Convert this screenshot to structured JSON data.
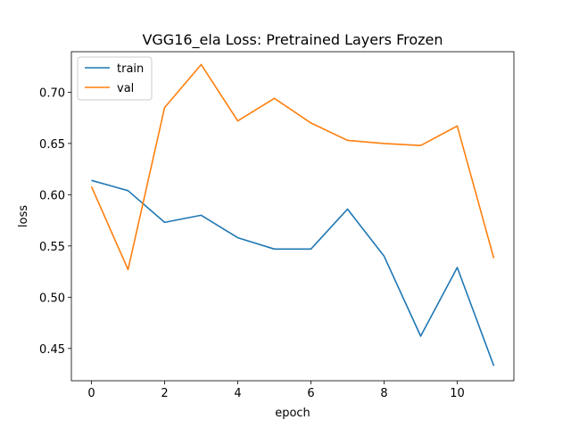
{
  "chart_data": {
    "type": "line",
    "title": "VGG16_ela Loss: Pretrained Layers Frozen",
    "xlabel": "epoch",
    "ylabel": "loss",
    "xlim": [
      -0.55,
      11.55
    ],
    "ylim": [
      0.4185,
      0.7395
    ],
    "xticks": [
      0,
      2,
      4,
      6,
      8,
      10
    ],
    "yticks": [
      0.45,
      0.5,
      0.55,
      0.6,
      0.65,
      0.7
    ],
    "grid": false,
    "legend_position": "top-left",
    "x": [
      0,
      1,
      2,
      3,
      4,
      5,
      6,
      7,
      8,
      9,
      10,
      11
    ],
    "series": [
      {
        "name": "train",
        "color": "#1f77b4",
        "values": [
          0.614,
          0.604,
          0.573,
          0.58,
          0.558,
          0.547,
          0.547,
          0.586,
          0.54,
          0.462,
          0.529,
          0.433
        ]
      },
      {
        "name": "val",
        "color": "#ff7f0e",
        "values": [
          0.608,
          0.527,
          0.685,
          0.727,
          0.672,
          0.694,
          0.67,
          0.653,
          0.65,
          0.648,
          0.667,
          0.538
        ]
      }
    ]
  }
}
